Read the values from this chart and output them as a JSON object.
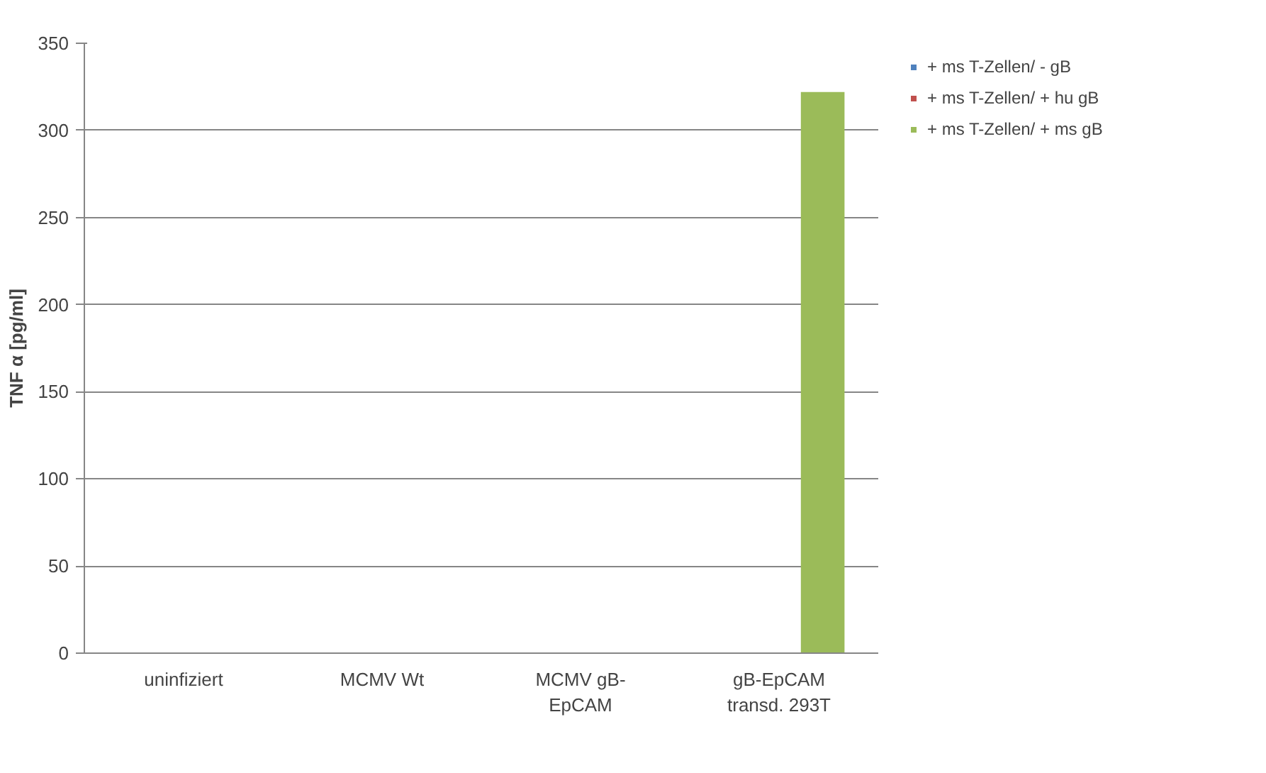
{
  "chart_data": {
    "type": "bar",
    "ylabel": "TNF α [pg/ml]",
    "categories": [
      "uninfiziert",
      "MCMV Wt",
      "MCMV gB-\nEpCAM",
      "gB-EpCAM\ntransd. 293T"
    ],
    "series": [
      {
        "name": "+ ms T-Zellen/ - gB",
        "color": "#4f81bd",
        "values": [
          0,
          0,
          0,
          0
        ]
      },
      {
        "name": "+ ms T-Zellen/ + hu gB",
        "color": "#c0504d",
        "values": [
          0,
          0,
          0,
          0
        ]
      },
      {
        "name": "+ ms T-Zellen/ + ms gB",
        "color": "#9bbb59",
        "values": [
          0,
          0,
          0,
          322
        ]
      }
    ],
    "ylim": [
      0,
      350
    ],
    "yticks": [
      0,
      50,
      100,
      150,
      200,
      250,
      300,
      350
    ],
    "grid": "y",
    "legend": "top right"
  }
}
